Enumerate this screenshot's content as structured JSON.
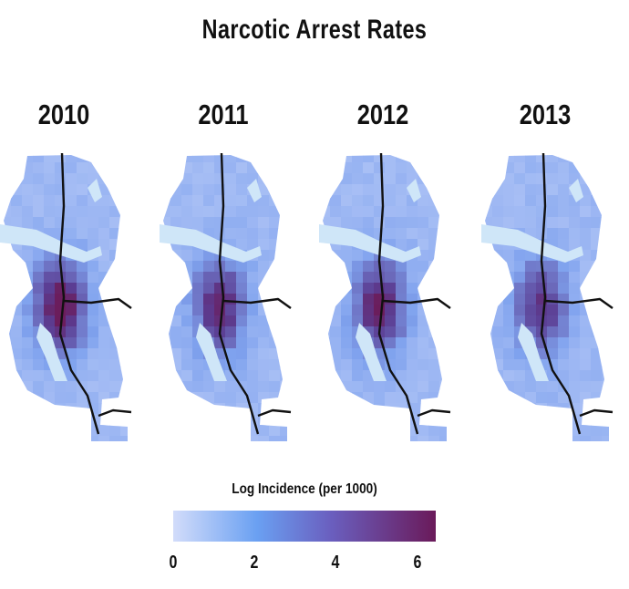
{
  "title": "Narcotic Arrest Rates",
  "panels": [
    {
      "year": "2010",
      "intensity": 1.0
    },
    {
      "year": "2011",
      "intensity": 0.88
    },
    {
      "year": "2012",
      "intensity": 0.92
    },
    {
      "year": "2013",
      "intensity": 0.8
    }
  ],
  "legend": {
    "title": "Log Incidence (per 1000)",
    "ticks": [
      "0",
      "2",
      "4",
      "6"
    ],
    "range": [
      0,
      6.5
    ],
    "colors": [
      "#d2dcfa",
      "#6aa0f2",
      "#6a5fbf",
      "#6a1a5a"
    ]
  },
  "colors": {
    "water": "#cfe6f8",
    "highway": "#111111",
    "low": "#c9d6fa",
    "mid": "#7fa2ee",
    "high": "#5b3d93",
    "peak": "#6b1d5c"
  }
}
